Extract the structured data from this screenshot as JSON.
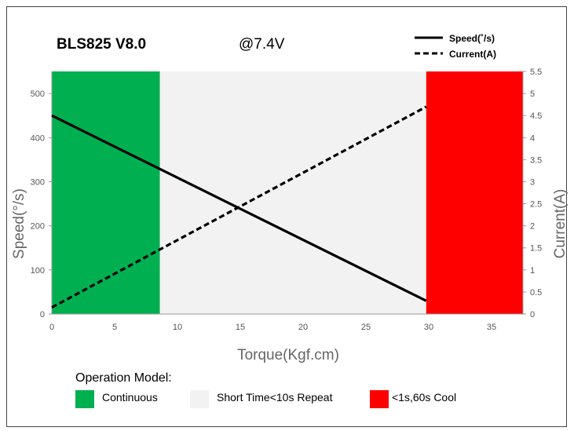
{
  "chart_data": {
    "type": "line",
    "title": "BLS825 V8.0",
    "subtitle": "@7.4V",
    "xlabel": "Torque(Kgf.cm)",
    "ylabel": "Speed(°/s)",
    "y2label": "Current(A)",
    "xlim": [
      0,
      37.5
    ],
    "ylim": [
      0,
      550
    ],
    "y2lim": [
      0,
      5.5
    ],
    "x_ticks": [
      0,
      5,
      10,
      15,
      20,
      25,
      30,
      35
    ],
    "y_ticks": [
      0,
      100,
      200,
      300,
      400,
      500
    ],
    "y2_ticks": [
      0,
      0.5,
      1,
      1.5,
      2,
      2.5,
      3,
      3.5,
      4,
      4.5,
      5,
      5.5
    ],
    "grid": false,
    "legend": "top-right",
    "series": [
      {
        "name": "Speed(˚/s)",
        "axis": "left",
        "style": "solid",
        "color": "#000000",
        "x": [
          0,
          29.8
        ],
        "y": [
          450,
          30
        ]
      },
      {
        "name": "Current(A)",
        "axis": "right",
        "style": "dashed",
        "color": "#000000",
        "x": [
          0,
          29.8
        ],
        "y": [
          0.15,
          4.7
        ]
      }
    ],
    "regions": [
      {
        "label": "Continuous",
        "from": 0,
        "to": 8.6,
        "color": "#00b050"
      },
      {
        "label": "Short Time<10s Repeat",
        "from": 8.6,
        "to": 29.8,
        "color": "#f2f2f2"
      },
      {
        "label": "<1s,60s Cool",
        "from": 29.8,
        "to": 37.5,
        "color": "#ff0000"
      }
    ],
    "operation_title": "Operation Model:"
  }
}
